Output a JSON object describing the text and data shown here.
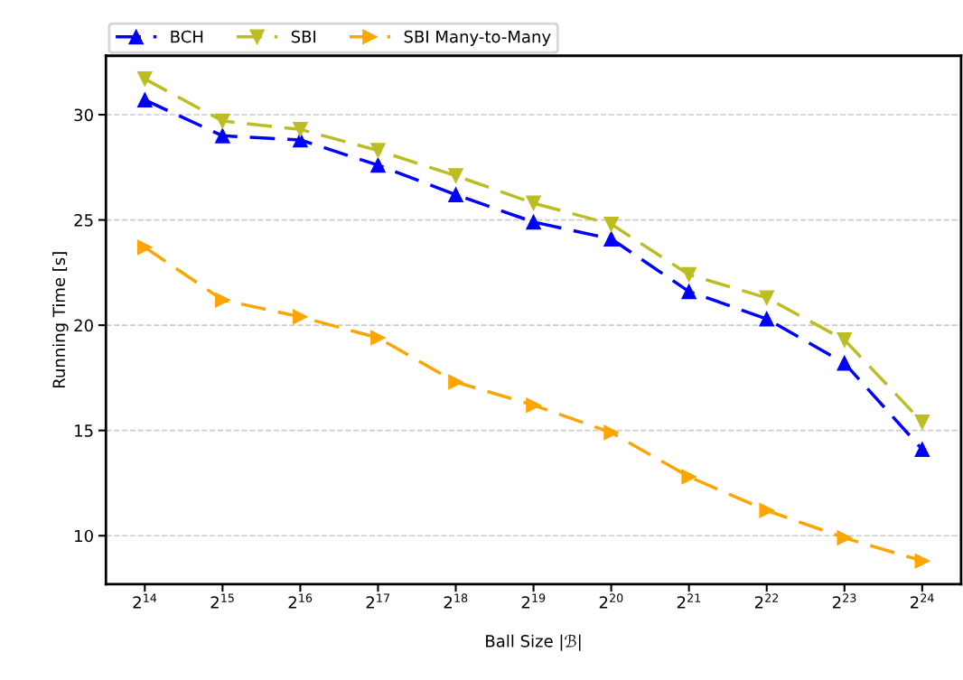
{
  "chart_data": {
    "type": "line",
    "xlabel": "Ball Size |ℬ|",
    "ylabel": "Running Time [s]",
    "categories": [
      "2$^{14}$",
      "2$^{15}$",
      "2$^{16}$",
      "2$^{17}$",
      "2$^{18}$",
      "2$^{19}$",
      "2$^{20}$",
      "2$^{21}$",
      "2$^{22}$",
      "2$^{23}$",
      "2$^{24}$"
    ],
    "series": [
      {
        "name": "BCH",
        "color": "#0000ff",
        "marker": "triangle-up",
        "values": [
          30.7,
          29.0,
          28.8,
          27.6,
          26.2,
          24.9,
          24.1,
          21.6,
          20.3,
          18.2,
          14.1
        ]
      },
      {
        "name": "SBI",
        "color": "#bcbd22",
        "marker": "triangle-down",
        "values": [
          31.7,
          29.7,
          29.3,
          28.3,
          27.1,
          25.8,
          24.8,
          22.4,
          21.3,
          19.3,
          15.4
        ]
      },
      {
        "name": "SBI Many-to-Many",
        "color": "#ffa500",
        "marker": "triangle-right",
        "values": [
          23.7,
          21.2,
          20.4,
          19.4,
          17.3,
          16.2,
          14.9,
          12.8,
          11.2,
          9.9,
          8.8
        ]
      }
    ],
    "ylim": [
      7.7,
      32.8
    ],
    "yticks": [
      10,
      15,
      20,
      25,
      30
    ],
    "grid": "y",
    "legend": "top",
    "line_style": "dashed"
  }
}
